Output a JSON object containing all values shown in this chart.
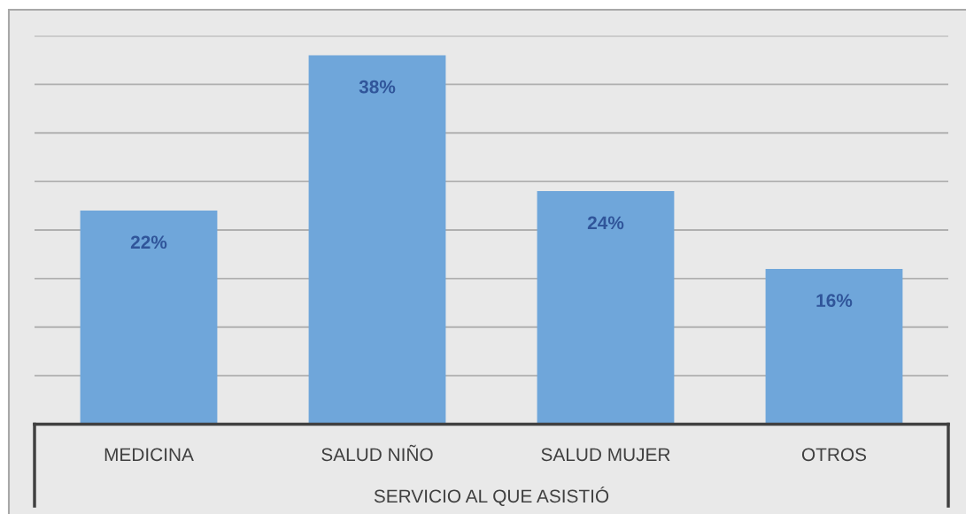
{
  "chart_data": {
    "type": "bar",
    "xlabel": "SERVICIO AL QUE ASISTIÓ",
    "categories": [
      "MEDICINA",
      "SALUD NIÑO",
      "SALUD MUJER",
      "OTROS"
    ],
    "values": [
      22,
      38,
      24,
      16
    ],
    "value_labels": [
      "22%",
      "38%",
      "24%",
      "16%"
    ],
    "color": "#6fa6da",
    "ylim": [
      0,
      40
    ],
    "yticks": [
      {
        "value": 0,
        "label": null
      },
      {
        "value": 5,
        "label": null
      },
      {
        "value": 10,
        "label": null
      },
      {
        "value": 15,
        "label": null
      },
      {
        "value": 20,
        "label": null
      },
      {
        "value": 25,
        "label": null
      },
      {
        "value": 30,
        "label": null
      },
      {
        "value": 35,
        "label": null
      },
      {
        "value": 40,
        "label": null
      }
    ],
    "tick_labels": "x",
    "grid": "y",
    "legend": false
  }
}
